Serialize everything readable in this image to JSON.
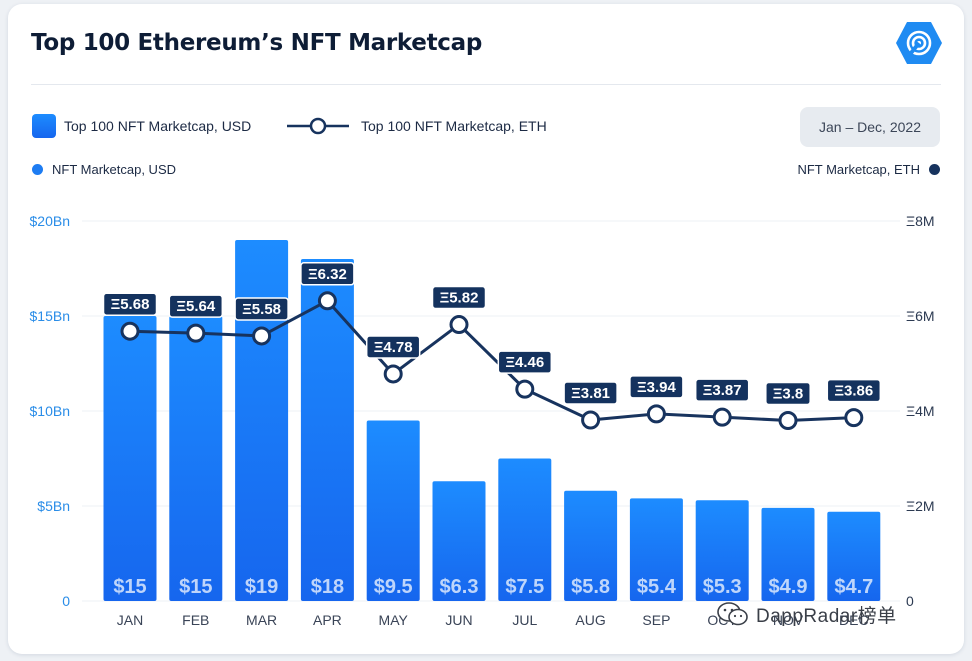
{
  "header": {
    "title": "Top 100 Ethereum’s NFT Marketcap",
    "logo_icon": "dappradar-logo-icon"
  },
  "legend": {
    "bar_label": "Top 100 NFT Marketcap, USD",
    "line_label": "Top 100 NFT Marketcap, ETH"
  },
  "date_range": "Jan – Dec, 2022",
  "axis_titles": {
    "left": "NFT Marketcap, USD",
    "right": "NFT Marketcap, ETH"
  },
  "watermark": {
    "text": "DappRadar榜单",
    "icon": "wechat-icon"
  },
  "colors": {
    "bar_top": "#1d8cff",
    "bar_bottom": "#1666ee",
    "line": "#17335e",
    "label_bg": "#14325e",
    "left_axis_text": "#2a8de8",
    "right_axis_text": "#2c3a52"
  },
  "chart_data": {
    "type": "bar",
    "categories": [
      "JAN",
      "FEB",
      "MAR",
      "APR",
      "MAY",
      "JUN",
      "JUL",
      "AUG",
      "SEP",
      "OCT",
      "NOV",
      "DEC"
    ],
    "series": [
      {
        "name": "Top 100 NFT Marketcap, USD",
        "type": "bar",
        "axis": "left",
        "values": [
          15,
          15,
          19,
          18,
          9.5,
          6.3,
          7.5,
          5.8,
          5.4,
          5.3,
          4.9,
          4.7
        ],
        "labels": [
          "$15",
          "$15",
          "$19",
          "$18",
          "$9.5",
          "$6.3",
          "$7.5",
          "$5.8",
          "$5.4",
          "$5.3",
          "$4.9",
          "$4.7"
        ]
      },
      {
        "name": "Top 100 NFT Marketcap, ETH",
        "type": "line",
        "axis": "right",
        "values": [
          5.68,
          5.64,
          5.58,
          6.32,
          4.78,
          5.82,
          4.46,
          3.81,
          3.94,
          3.87,
          3.8,
          3.86
        ],
        "labels": [
          "Ξ5.68",
          "Ξ5.64",
          "Ξ5.58",
          "Ξ6.32",
          "Ξ4.78",
          "Ξ5.82",
          "Ξ4.46",
          "Ξ3.81",
          "Ξ3.94",
          "Ξ3.87",
          "Ξ3.8",
          "Ξ3.86"
        ]
      }
    ],
    "y_left": {
      "ticks": [
        "0",
        "$5Bn",
        "$10Bn",
        "$15Bn",
        "$20Bn"
      ],
      "ylim": [
        0,
        20
      ]
    },
    "y_right": {
      "ticks": [
        "0",
        "Ξ2M",
        "Ξ4M",
        "Ξ6M",
        "Ξ8M"
      ],
      "ylim": [
        0,
        8
      ]
    },
    "grid": true,
    "legend_position": "top-left"
  }
}
